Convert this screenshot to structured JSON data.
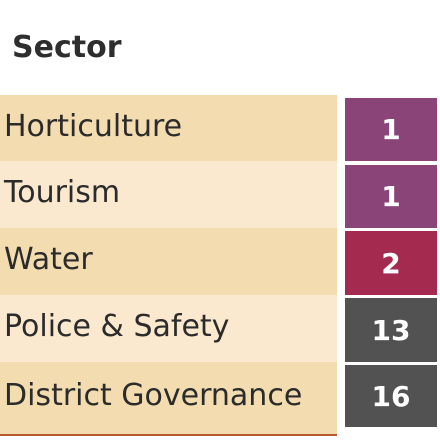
{
  "header": {
    "title": "Sector"
  },
  "rows": [
    {
      "label": "Horticulture",
      "count": "1"
    },
    {
      "label": "Tourism",
      "count": "1"
    },
    {
      "label": "Water",
      "count": "2"
    },
    {
      "label": "Police & Safety",
      "count": "13"
    },
    {
      "label": "District Governance",
      "count": "16"
    }
  ],
  "colors": {
    "band_dark": "#f2dcb0",
    "band_light": "#fae8cf",
    "badge_1": "#8b4478",
    "badge_2": "#a52a50",
    "badge_3": "#525252",
    "divider": "#b85a2e"
  }
}
